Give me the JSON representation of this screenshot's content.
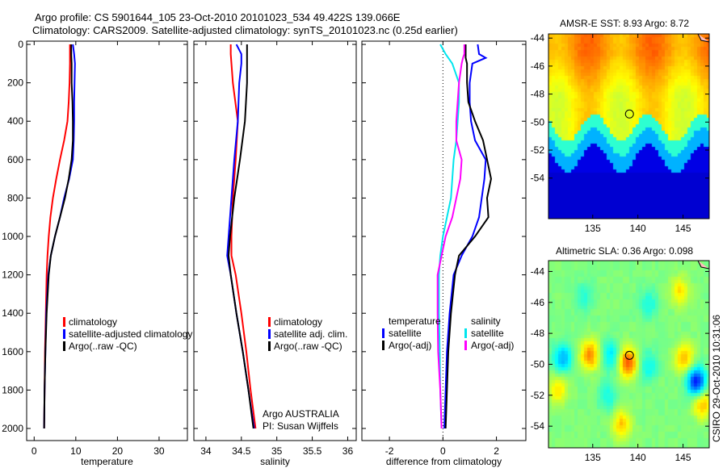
{
  "title_line1": "Argo profile: CS 5901644_105 23-Oct-2010 20101023_534 49.422S 139.066E",
  "title_line2": "Climatology: CARS2009. Satellite-adjusted climatology: synTS_20101023.nc (0.25d earlier)",
  "credit": [
    "Argo AUSTRALIA",
    "PI: Susan Wijffels"
  ],
  "side_stamp": "CSIRO 29-Oct-2010 10:31:06",
  "colors": {
    "climatology": "#ff0000",
    "satellite": "#0000ff",
    "argo": "#000000",
    "sal_satellite": "#00e5ee",
    "sal_argo": "#ff00ff"
  },
  "chart_data": [
    {
      "type": "line",
      "xlabel": "temperature",
      "ylabel": "",
      "xlim": [
        -1.8,
        36.8
      ],
      "ylim": [
        2063,
        -17
      ],
      "xticks": [
        0,
        10,
        20,
        30
      ],
      "yticks": [
        0,
        200,
        400,
        600,
        800,
        1000,
        1200,
        1400,
        1600,
        1800,
        2000
      ],
      "legend": [
        "climatology",
        "satellite-adjusted climatology",
        "Argo(..raw -QC)"
      ],
      "depth": [
        0,
        50,
        100,
        200,
        300,
        400,
        500,
        600,
        700,
        800,
        900,
        1000,
        1100,
        1200,
        1400,
        1600,
        1800,
        2000
      ],
      "series": [
        {
          "name": "climatology",
          "values": [
            8.6,
            8.6,
            8.6,
            8.5,
            8.3,
            8.0,
            7.2,
            6.2,
            5.3,
            4.5,
            3.9,
            3.5,
            3.2,
            3.0,
            2.8,
            2.6,
            2.5,
            2.4
          ]
        },
        {
          "name": "satellite-adjusted climatology",
          "values": [
            9.3,
            9.6,
            9.8,
            9.7,
            9.6,
            9.6,
            9.5,
            9.3,
            8.4,
            7.2,
            6.2,
            5.0,
            4.0,
            3.4,
            2.9,
            2.7,
            2.5,
            2.4
          ]
        },
        {
          "name": "Argo(..raw -QC)",
          "values": [
            8.9,
            8.9,
            9.0,
            9.0,
            9.2,
            9.3,
            9.3,
            9.0,
            8.3,
            7.4,
            6.2,
            5.0,
            4.0,
            3.5,
            3.0,
            2.7,
            2.5,
            2.4
          ]
        }
      ]
    },
    {
      "type": "line",
      "xlabel": "salinity",
      "ylabel": "",
      "xlim": [
        33.83,
        36.12
      ],
      "ylim": [
        2063,
        -17
      ],
      "xticks": [
        34,
        34.5,
        35,
        35.5,
        36
      ],
      "xticklabels": [
        "34",
        "34.5",
        "35",
        "35.5",
        "36"
      ],
      "legend": [
        "climatology",
        "satellite adj. clim.",
        "Argo(..raw -QC)"
      ],
      "depth": [
        0,
        50,
        100,
        200,
        400,
        600,
        800,
        1000,
        1100,
        1200,
        1400,
        1600,
        1800,
        2000
      ],
      "series": [
        {
          "name": "climatology",
          "values": [
            34.35,
            34.35,
            34.36,
            34.38,
            34.45,
            34.42,
            34.38,
            34.36,
            34.36,
            34.42,
            34.5,
            34.57,
            34.63,
            34.7
          ]
        },
        {
          "name": "satellite adj. clim.",
          "values": [
            34.43,
            34.5,
            34.5,
            34.47,
            34.45,
            34.4,
            34.36,
            34.32,
            34.3,
            34.35,
            34.43,
            34.52,
            34.6,
            34.68
          ]
        },
        {
          "name": "Argo(..raw -QC)",
          "values": [
            34.58,
            34.58,
            34.58,
            34.58,
            34.55,
            34.48,
            34.4,
            34.34,
            34.32,
            34.35,
            34.43,
            34.52,
            34.6,
            34.67
          ]
        }
      ]
    },
    {
      "type": "line",
      "xlabel": "difference from climatology",
      "ylabel": "",
      "xlim": [
        -3.03,
        3.1
      ],
      "ylim": [
        2063,
        -17
      ],
      "xticks": [
        -2,
        0,
        2
      ],
      "legend_groups": [
        {
          "title": "temperature",
          "items": [
            "satellite",
            "Argo(-adj)"
          ]
        },
        {
          "title": "salinity",
          "items": [
            "satellite",
            "Argo(-adj)"
          ]
        }
      ],
      "depth": [
        0,
        50,
        70,
        100,
        200,
        300,
        400,
        500,
        600,
        700,
        800,
        900,
        1000,
        1100,
        1200,
        1400,
        1600,
        1800,
        2000
      ],
      "series": [
        {
          "name": "temperature satellite",
          "values": [
            1.3,
            1.35,
            1.6,
            1.1,
            1.0,
            1.0,
            1.05,
            1.2,
            1.6,
            1.55,
            1.45,
            1.35,
            1.1,
            0.7,
            0.4,
            0.25,
            0.15,
            0.1,
            0.05
          ]
        },
        {
          "name": "temperature Argo(-adj)",
          "values": [
            0.85,
            0.85,
            0.85,
            0.9,
            0.9,
            0.95,
            1.2,
            1.5,
            1.65,
            1.8,
            1.65,
            1.7,
            1.2,
            0.6,
            0.45,
            0.3,
            0.2,
            0.15,
            0.1
          ]
        },
        {
          "name": "salinity satellite",
          "values": [
            -0.1,
            0.1,
            0.2,
            0.35,
            0.6,
            0.6,
            0.55,
            0.5,
            0.4,
            0.35,
            0.3,
            0.15,
            0.0,
            -0.1,
            -0.15,
            -0.15,
            -0.12,
            -0.1,
            -0.05
          ]
        },
        {
          "name": "salinity Argo(-adj)",
          "values": [
            0.8,
            0.8,
            0.75,
            0.7,
            0.6,
            0.55,
            0.5,
            0.5,
            0.7,
            0.65,
            0.5,
            0.35,
            0.1,
            -0.05,
            -0.2,
            -0.2,
            -0.18,
            -0.1,
            -0.05
          ]
        }
      ]
    },
    {
      "type": "heatmap",
      "title": "AMSR-E SST: 8.93 Argo: 8.72",
      "xlim": [
        130.1,
        147.9
      ],
      "ylim": [
        -56.9,
        -43.7
      ],
      "xticks": [
        135,
        140,
        145
      ],
      "yticks": [
        -44,
        -46,
        -48,
        -50,
        -52,
        -54
      ],
      "marker": {
        "lon": 139.066,
        "lat": -49.422
      }
    },
    {
      "type": "heatmap",
      "title": "Altimetric SLA: 0.36 Argo: 0.098",
      "xlim": [
        130.1,
        147.9
      ],
      "ylim": [
        -55.4,
        -43.3
      ],
      "xticks": [
        135,
        140,
        145
      ],
      "yticks": [
        -44,
        -46,
        -48,
        -50,
        -52,
        -54
      ],
      "marker": {
        "lon": 139.066,
        "lat": -49.422
      }
    }
  ]
}
